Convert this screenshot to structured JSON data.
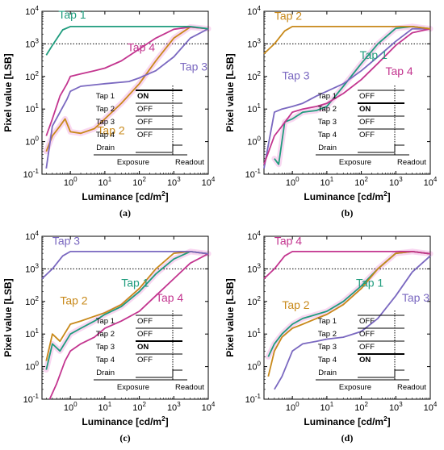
{
  "colors": {
    "tap1": "#1f9c7d",
    "tap2": "#c8891a",
    "tap3": "#7a68c0",
    "tap4": "#c3358f",
    "highlight": "#f2a7df"
  },
  "common": {
    "xlabel": "Luminance [cd/m²]",
    "ylabel": "Pixel value [LSB]",
    "x_ticks": [
      "10^0",
      "10^1",
      "10^2",
      "10^3",
      "10^4"
    ],
    "y_ticks": [
      "10^-1",
      "10^0",
      "10^1",
      "10^2",
      "10^3",
      "10^4"
    ],
    "table_rows": [
      "Tap 1",
      "Tap 2",
      "Tap 3",
      "Tap 4",
      "Drain"
    ],
    "exposure_label": "Exposure",
    "readout_label": "Readout",
    "on_label": "ON",
    "off_label": "OFF",
    "reference_line": 1000
  },
  "chart_data": [
    {
      "type": "line",
      "panel": "(a)",
      "on_tap": "Tap 1",
      "xscale": "log",
      "yscale": "log",
      "xlim": [
        0.15,
        10000
      ],
      "ylim": [
        0.1,
        10000
      ],
      "series": [
        {
          "name": "Tap 1",
          "x": [
            0.2,
            0.3,
            0.6,
            1,
            10,
            100,
            1000,
            3000,
            10000
          ],
          "y": [
            450,
            900,
            2700,
            3400,
            3400,
            3400,
            3400,
            3400,
            2900
          ]
        },
        {
          "name": "Tap 2",
          "x": [
            0.2,
            0.3,
            0.5,
            0.7,
            1,
            2,
            5,
            10,
            30,
            100,
            300,
            1000,
            3000,
            10000
          ],
          "y": [
            0.5,
            1.5,
            3,
            5,
            2,
            1.8,
            2.5,
            5,
            15,
            60,
            300,
            1500,
            3300,
            2900
          ]
        },
        {
          "name": "Tap 3",
          "x": [
            0.2,
            0.3,
            0.5,
            0.8,
            1,
            2,
            10,
            50,
            100,
            300,
            1000,
            3000,
            10000
          ],
          "y": [
            0.15,
            3,
            8,
            20,
            35,
            50,
            60,
            70,
            90,
            150,
            400,
            1500,
            2900
          ]
        },
        {
          "name": "Tap 4",
          "x": [
            0.2,
            0.3,
            0.5,
            0.8,
            1,
            2,
            5,
            10,
            30,
            100,
            300,
            1000,
            3000,
            10000
          ],
          "y": [
            1.5,
            5,
            25,
            60,
            100,
            120,
            150,
            180,
            300,
            700,
            1500,
            2800,
            3300,
            2900
          ]
        }
      ],
      "labels": [
        {
          "text": "Tap 1",
          "series": "Tap 1",
          "x": 0.45,
          "y": 6000
        },
        {
          "text": "Tap 2",
          "series": "Tap 2",
          "x": 6,
          "y": 1.7
        },
        {
          "text": "Tap 3",
          "series": "Tap 3",
          "x": 1500,
          "y": 150
        },
        {
          "text": "Tap 4",
          "series": "Tap 4",
          "x": 45,
          "y": 600
        }
      ]
    },
    {
      "type": "line",
      "panel": "(b)",
      "on_tap": "Tap 2",
      "xscale": "log",
      "yscale": "log",
      "xlim": [
        0.15,
        10000
      ],
      "ylim": [
        0.1,
        10000
      ],
      "series": [
        {
          "name": "Tap 1",
          "x": [
            0.3,
            0.4,
            0.6,
            1,
            2,
            5,
            10,
            30,
            100,
            300,
            1000,
            3000,
            10000
          ],
          "y": [
            0.3,
            0.2,
            4,
            5,
            8,
            9,
            12,
            50,
            250,
            1000,
            3000,
            3400,
            2900
          ]
        },
        {
          "name": "Tap 2",
          "x": [
            0.15,
            0.3,
            0.6,
            1,
            10,
            100,
            1000,
            3000,
            10000
          ],
          "y": [
            500,
            1000,
            2500,
            3400,
            3400,
            3400,
            3400,
            3400,
            2900
          ]
        },
        {
          "name": "Tap 3",
          "x": [
            0.15,
            0.3,
            0.5,
            1,
            2,
            5,
            10,
            30,
            100,
            300,
            1000,
            3000,
            10000
          ],
          "y": [
            0.15,
            8,
            10,
            12,
            15,
            25,
            35,
            60,
            150,
            400,
            1200,
            2900,
            2900
          ]
        },
        {
          "name": "Tap 4",
          "x": [
            0.15,
            0.3,
            0.5,
            1,
            2,
            5,
            10,
            30,
            100,
            300,
            1000,
            3000,
            10000
          ],
          "y": [
            0.2,
            1.5,
            3,
            8,
            10,
            12,
            15,
            30,
            80,
            250,
            900,
            2200,
            2900
          ]
        }
      ],
      "labels": [
        {
          "text": "Tap 2",
          "series": "Tap 2",
          "x": 0.3,
          "y": 5500
        },
        {
          "text": "Tap 1",
          "series": "Tap 1",
          "x": 90,
          "y": 350
        },
        {
          "text": "Tap 3",
          "series": "Tap 3",
          "x": 0.5,
          "y": 80
        },
        {
          "text": "Tap 4",
          "series": "Tap 4",
          "x": 500,
          "y": 110
        }
      ]
    },
    {
      "type": "line",
      "panel": "(c)",
      "on_tap": "Tap 3",
      "xscale": "log",
      "yscale": "log",
      "xlim": [
        0.15,
        10000
      ],
      "ylim": [
        0.1,
        10000
      ],
      "series": [
        {
          "name": "Tap 1",
          "x": [
            0.2,
            0.3,
            0.5,
            1,
            2,
            5,
            10,
            30,
            100,
            300,
            1000,
            3000,
            10000
          ],
          "y": [
            0.8,
            5,
            3,
            10,
            15,
            25,
            40,
            70,
            200,
            700,
            2000,
            3400,
            2900
          ]
        },
        {
          "name": "Tap 2",
          "x": [
            0.2,
            0.3,
            0.5,
            1,
            2,
            5,
            10,
            30,
            100,
            300,
            1000,
            3000,
            10000
          ],
          "y": [
            1.5,
            10,
            6,
            20,
            25,
            35,
            45,
            80,
            250,
            1000,
            3000,
            3400,
            2900
          ]
        },
        {
          "name": "Tap 3",
          "x": [
            0.15,
            0.3,
            0.6,
            1,
            10,
            100,
            1000,
            3000,
            10000
          ],
          "y": [
            500,
            1000,
            2500,
            3400,
            3400,
            3400,
            3400,
            3400,
            2900
          ]
        },
        {
          "name": "Tap 4",
          "x": [
            0.25,
            0.4,
            0.7,
            1,
            2,
            5,
            10,
            30,
            100,
            300,
            1000,
            3000,
            10000
          ],
          "y": [
            0.1,
            0.3,
            1.5,
            3,
            5,
            8,
            15,
            25,
            50,
            150,
            500,
            1500,
            2900
          ]
        }
      ],
      "labels": [
        {
          "text": "Tap 3",
          "series": "Tap 3",
          "x": 0.3,
          "y": 5500
        },
        {
          "text": "Tap 1",
          "series": "Tap 1",
          "x": 30,
          "y": 280
        },
        {
          "text": "Tap 2",
          "series": "Tap 2",
          "x": 0.5,
          "y": 80
        },
        {
          "text": "Tap 4",
          "series": "Tap 4",
          "x": 300,
          "y": 100
        }
      ]
    },
    {
      "type": "line",
      "panel": "(d)",
      "on_tap": "Tap 4",
      "xscale": "log",
      "yscale": "log",
      "xlim": [
        0.15,
        10000
      ],
      "ylim": [
        0.1,
        10000
      ],
      "series": [
        {
          "name": "Tap 1",
          "x": [
            0.2,
            0.3,
            0.5,
            1,
            2,
            5,
            10,
            30,
            100,
            300,
            1000,
            3000,
            10000
          ],
          "y": [
            2,
            5,
            10,
            20,
            30,
            40,
            50,
            100,
            300,
            1000,
            3000,
            3400,
            2900
          ]
        },
        {
          "name": "Tap 2",
          "x": [
            0.2,
            0.3,
            0.5,
            1,
            2,
            5,
            10,
            30,
            100,
            300,
            1000,
            3000,
            10000
          ],
          "y": [
            0.5,
            3,
            8,
            15,
            20,
            30,
            40,
            80,
            250,
            1000,
            3000,
            3400,
            2900
          ]
        },
        {
          "name": "Tap 3",
          "x": [
            0.3,
            0.5,
            1,
            2,
            5,
            10,
            30,
            100,
            300,
            1000,
            3000,
            10000
          ],
          "y": [
            0.2,
            0.5,
            3,
            5,
            6,
            7,
            8,
            12,
            30,
            150,
            800,
            2500
          ]
        },
        {
          "name": "Tap 4",
          "x": [
            0.15,
            0.3,
            0.6,
            1,
            10,
            100,
            1000,
            3000,
            10000
          ],
          "y": [
            500,
            1000,
            2500,
            3400,
            3400,
            3400,
            3400,
            3400,
            2900
          ]
        }
      ],
      "labels": [
        {
          "text": "Tap 4",
          "series": "Tap 4",
          "x": 0.3,
          "y": 5500
        },
        {
          "text": "Tap 1",
          "series": "Tap 1",
          "x": 70,
          "y": 280
        },
        {
          "text": "Tap 2",
          "series": "Tap 2",
          "x": 0.5,
          "y": 60
        },
        {
          "text": "Tap 3",
          "series": "Tap 3",
          "x": 1500,
          "y": 100
        }
      ]
    }
  ]
}
